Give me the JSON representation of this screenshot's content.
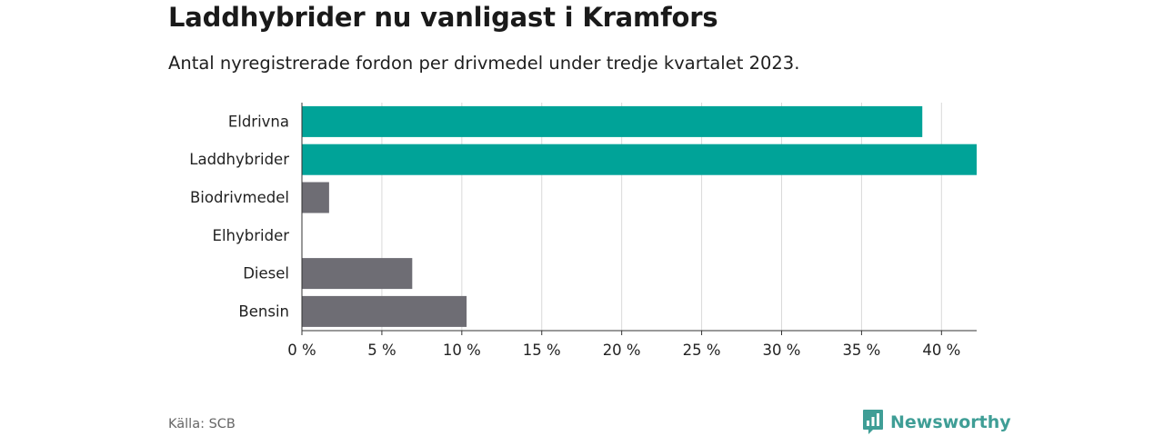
{
  "header": {
    "title": "Laddhybrider nu vanligast i Kramfors",
    "subtitle": "Antal nyregistrerade fordon per drivmedel under tredje kvartalet 2023."
  },
  "chart_data": {
    "type": "bar",
    "orientation": "horizontal",
    "title": "Laddhybrider nu vanligast i Kramfors",
    "subtitle": "Antal nyregistrerade fordon per drivmedel under tredje kvartalet 2023.",
    "categories": [
      "Eldrivna",
      "Laddhybrider",
      "Biodrivmedel",
      "Elhybrider",
      "Diesel",
      "Bensin"
    ],
    "values": [
      38.8,
      42.2,
      1.7,
      0,
      6.9,
      10.3
    ],
    "unit": "%",
    "highlighted": [
      "Eldrivna",
      "Laddhybrider"
    ],
    "colors": {
      "highlight": "#00a398",
      "default": "#6e6d74",
      "grid": "#d9d9d9",
      "axis": "#333333"
    },
    "xlim": [
      0,
      42.2
    ],
    "xticks": [
      0,
      5,
      10,
      15,
      20,
      25,
      30,
      35,
      40
    ],
    "xtick_labels": [
      "0 %",
      "5 %",
      "10 %",
      "15 %",
      "20 %",
      "25 %",
      "30 %",
      "35 %",
      "40 %"
    ],
    "grid": true,
    "xlabel": "",
    "ylabel": ""
  },
  "footer": {
    "source": "Källa: SCB",
    "brand": "Newsworthy",
    "brand_icon": "newsworthy-logo-icon"
  }
}
